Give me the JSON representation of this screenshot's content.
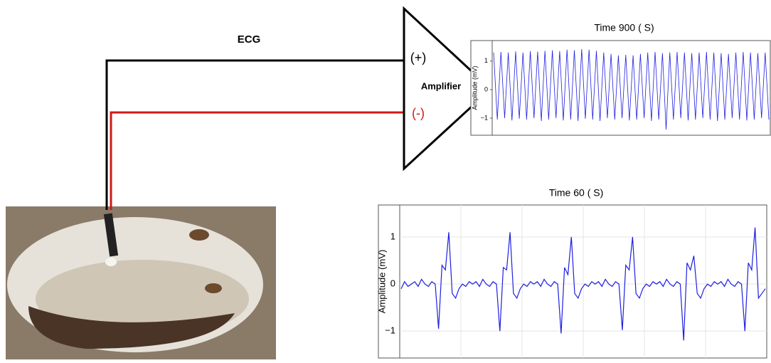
{
  "labels": {
    "ecg": "ECG",
    "plus": "(+)",
    "minus": "(-)",
    "amplifier": "Amplifier"
  },
  "chart_data": [
    {
      "type": "line",
      "title": "Time 900 ( S)",
      "y_label": "Amplitude (mV)",
      "ylim": [
        -1.6,
        1.72
      ],
      "yticks": [
        1,
        0,
        {
          "value": -1,
          "label": "−1"
        }
      ],
      "grid": false,
      "series": [
        {
          "color": "#1f1fe0",
          "values": [
            1.3,
            -1.05,
            1.32,
            -1.0,
            1.3,
            -1.08,
            1.34,
            -1.02,
            1.3,
            -1.05,
            1.35,
            -1.0,
            1.33,
            -1.1,
            1.36,
            -1.05,
            1.38,
            -1.0,
            1.35,
            -1.08,
            1.4,
            -1.05,
            1.38,
            -1.1,
            1.42,
            -1.02,
            1.4,
            -1.05,
            1.36,
            -1.1,
            1.3,
            -1.0,
            1.25,
            -1.05,
            1.2,
            -1.0,
            1.22,
            -1.08,
            1.2,
            -1.05,
            1.25,
            -1.0,
            1.3,
            -1.1,
            1.32,
            -1.05,
            1.28,
            -1.4,
            1.3,
            -1.05,
            1.32,
            -1.0,
            1.3,
            -1.08,
            1.28,
            -1.05,
            1.3,
            -1.0,
            1.32,
            -1.05,
            1.3,
            -1.1,
            1.28,
            -1.05,
            1.25,
            -1.0,
            1.3,
            -1.05,
            1.32,
            -1.08,
            1.3,
            -1.05,
            1.28,
            -1.0,
            1.3,
            -1.05
          ]
        }
      ]
    },
    {
      "type": "line",
      "title": "Time 60 ( S)",
      "y_label": "Amplitude (mV)",
      "ylim": [
        -1.86,
        1.68
      ],
      "yticks": [
        1,
        0,
        {
          "value": -1,
          "label": "−1"
        }
      ],
      "grid": true,
      "series": [
        {
          "color": "#1f1fe0",
          "values": [
            -0.1,
            0.05,
            -0.05,
            0,
            0.05,
            -0.05,
            0.1,
            0,
            -0.05,
            0.05,
            0,
            -0.95,
            0.4,
            0.3,
            1.1,
            -0.2,
            -0.3,
            -0.1,
            0,
            -0.05,
            0.05,
            0,
            0.05,
            -0.05,
            0.1,
            0,
            -0.05,
            0.05,
            0,
            -1.0,
            0.35,
            0.3,
            1.1,
            -0.2,
            -0.3,
            -0.1,
            0,
            -0.05,
            0.05,
            0,
            0.05,
            -0.05,
            0.1,
            0,
            -0.05,
            0.05,
            0,
            -1.05,
            0.35,
            0.2,
            1.0,
            -0.2,
            -0.3,
            -0.1,
            0,
            -0.05,
            0.05,
            0,
            0.05,
            -0.05,
            0.1,
            0,
            -0.05,
            0.05,
            0,
            -0.98,
            0.4,
            0.3,
            1.0,
            -0.2,
            -0.3,
            -0.1,
            0,
            -0.05,
            0.05,
            0,
            0.05,
            -0.05,
            0.1,
            0,
            -0.05,
            0.05,
            0,
            -1.2,
            0.45,
            0.3,
            0.6,
            -0.2,
            -0.3,
            -0.1,
            0,
            -0.05,
            0.05,
            0,
            0.05,
            -0.05,
            0.1,
            0,
            -0.05,
            0.05,
            0,
            -1.0,
            0.45,
            0.3,
            1.2,
            -0.3,
            -0.2,
            -0.1
          ]
        }
      ]
    }
  ]
}
